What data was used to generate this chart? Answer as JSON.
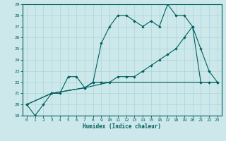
{
  "xlabel": "Humidex (Indice chaleur)",
  "bg_color": "#cce8ea",
  "grid_color": "#aad4d8",
  "line_color": "#005f5f",
  "xlim": [
    -0.5,
    23.5
  ],
  "ylim": [
    19,
    29
  ],
  "xticks": [
    0,
    1,
    2,
    3,
    4,
    5,
    6,
    7,
    8,
    9,
    10,
    11,
    12,
    13,
    14,
    15,
    16,
    17,
    18,
    19,
    20,
    21,
    22,
    23
  ],
  "yticks": [
    19,
    20,
    21,
    22,
    23,
    24,
    25,
    26,
    27,
    28,
    29
  ],
  "line1_x": [
    0,
    1,
    2,
    3,
    4,
    5,
    6,
    7,
    8,
    9,
    10,
    11,
    12,
    13,
    14,
    15,
    16,
    17,
    18,
    19,
    20,
    21,
    22,
    23
  ],
  "line1_y": [
    20,
    19,
    20,
    21,
    21,
    22.5,
    22.5,
    21.5,
    22,
    25.5,
    27,
    28,
    28,
    27.5,
    27,
    27.5,
    27,
    29,
    28,
    28,
    27,
    25,
    23,
    22
  ],
  "line2_x": [
    0,
    3,
    7,
    8,
    9,
    10,
    11,
    12,
    13,
    14,
    15,
    16,
    17,
    18,
    19,
    20,
    21,
    22,
    23
  ],
  "line2_y": [
    20,
    21,
    21.5,
    22,
    22,
    22,
    22.5,
    22.5,
    22.5,
    23,
    23.5,
    24,
    24.5,
    25,
    26,
    27,
    22,
    22,
    22
  ],
  "line3_x": [
    0,
    3,
    7,
    10,
    13,
    16,
    19,
    20,
    21,
    22,
    23
  ],
  "line3_y": [
    20,
    21,
    21.5,
    22,
    22,
    22,
    22,
    22,
    22,
    22,
    22
  ]
}
